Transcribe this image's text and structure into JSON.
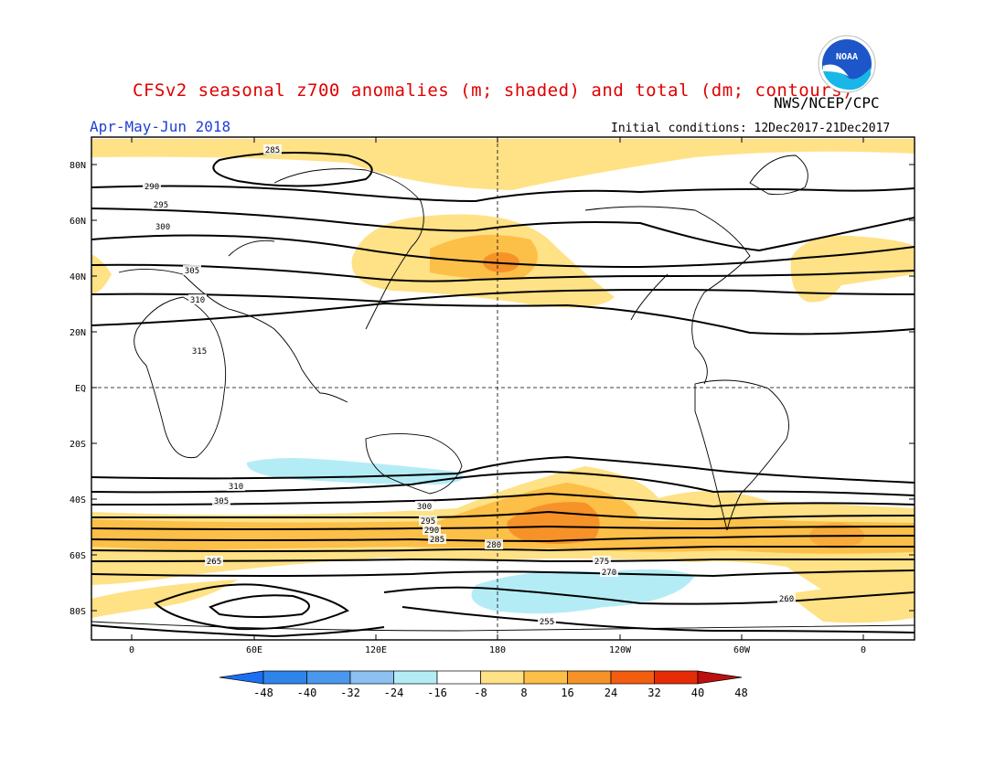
{
  "title": "CFSv2 seasonal z700 anomalies (m; shaded) and total (dm; contours)",
  "agency": "NWS/NCEP/CPC",
  "logo_text": "NOAA",
  "season": "Apr-May-Jun 2018",
  "initial_conditions": "Initial conditions: 12Dec2017-21Dec2017",
  "map": {
    "lat_labels": [
      "80N",
      "60N",
      "40N",
      "20N",
      "EQ",
      "20S",
      "40S",
      "60S",
      "80S"
    ],
    "lon_labels": [
      "0",
      "60E",
      "120E",
      "180",
      "120W",
      "60W",
      "0"
    ]
  },
  "contour_labels": [
    "285",
    "290",
    "295",
    "300",
    "305",
    "310",
    "315",
    "310",
    "305",
    "300",
    "295",
    "290",
    "285",
    "280",
    "275",
    "270",
    "265",
    "260",
    "255"
  ],
  "colorbar": {
    "labels": [
      "-48",
      "-40",
      "-32",
      "-24",
      "-16",
      "-8",
      "8",
      "16",
      "24",
      "32",
      "40",
      "48"
    ],
    "colors": [
      "#1c6ff0",
      "#2f84ec",
      "#4a97ee",
      "#8cc1f2",
      "#b4ecf6",
      "#ffffff",
      "#ffe186",
      "#fcbf48",
      "#f79228",
      "#f25d10",
      "#e62b06",
      "#bd0f0f"
    ]
  }
}
